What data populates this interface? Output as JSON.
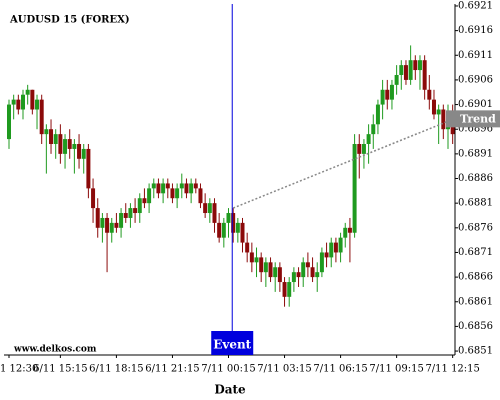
{
  "chart_data": {
    "type": "candlestick",
    "title": "AUDUSD 15 (FOREX)",
    "watermark": "www.delkos.com",
    "x_label": "Date",
    "up_color": "#1f9a1f",
    "down_color": "#8b0a0a",
    "ylim": [
      0.68502,
      0.69214
    ],
    "yticks": [
      0.6851,
      0.6856,
      0.6861,
      0.6866,
      0.6871,
      0.6876,
      0.6881,
      0.6886,
      0.6891,
      0.6896,
      0.6901,
      0.6906,
      0.6911,
      0.6916,
      0.6921
    ],
    "xlim": [
      -1.07,
      95.5
    ],
    "xticks": [
      {
        "value": 0,
        "label": "1 12:30"
      },
      {
        "value": 11,
        "label": "6/11 15:15"
      },
      {
        "value": 23,
        "label": "6/11 18:15"
      },
      {
        "value": 35,
        "label": "6/11 21:15"
      },
      {
        "value": 47,
        "label": "7/11 00:15"
      },
      {
        "value": 59,
        "label": "7/11 03:15"
      },
      {
        "value": 71,
        "label": "7/11 06:15"
      },
      {
        "value": 83,
        "label": "7/11 09:15"
      },
      {
        "value": 95,
        "label": "7/11 12:15"
      }
    ],
    "event": {
      "label": "Event",
      "x": 47.8,
      "color": "#0000dd"
    },
    "trend": {
      "label": "Trend",
      "x": [
        48,
        95
      ],
      "y": [
        0.688,
        0.6898
      ],
      "color": "#888888"
    },
    "open": [
      0.6894,
      0.6901,
      0.6902,
      0.69,
      0.6903,
      0.6904,
      0.69,
      0.6902,
      0.6895,
      0.6896,
      0.6893,
      0.6895,
      0.6891,
      0.6894,
      0.6892,
      0.6893,
      0.689,
      0.6892,
      0.6884,
      0.688,
      0.6876,
      0.6878,
      0.6875,
      0.6877,
      0.6876,
      0.6879,
      0.6878,
      0.688,
      0.6879,
      0.6882,
      0.6881,
      0.6884,
      0.6885,
      0.6883,
      0.6885,
      0.6884,
      0.6882,
      0.6884,
      0.6885,
      0.6883,
      0.6885,
      0.6884,
      0.6881,
      0.6879,
      0.6881,
      0.6877,
      0.6874,
      0.6877,
      0.6879,
      0.6875,
      0.6877,
      0.6873,
      0.6871,
      0.6869,
      0.687,
      0.6867,
      0.6869,
      0.6866,
      0.6868,
      0.6865,
      0.6862,
      0.6865,
      0.6867,
      0.6866,
      0.6869,
      0.6868,
      0.6866,
      0.6867,
      0.6871,
      0.687,
      0.6873,
      0.6871,
      0.6874,
      0.6876,
      0.6875,
      0.6893,
      0.6891,
      0.6893,
      0.6895,
      0.6897,
      0.6901,
      0.6904,
      0.6902,
      0.6905,
      0.6907,
      0.6909,
      0.6906,
      0.691,
      0.6908,
      0.691,
      0.6904,
      0.6902,
      0.6899,
      0.69,
      0.6896,
      0.6899
    ],
    "high": [
      0.6902,
      0.6903,
      0.6903,
      0.6904,
      0.6905,
      0.6904,
      0.6903,
      0.6903,
      0.6897,
      0.6898,
      0.6896,
      0.6897,
      0.6895,
      0.6896,
      0.6894,
      0.6895,
      0.6893,
      0.6893,
      0.6886,
      0.6882,
      0.6879,
      0.6879,
      0.6878,
      0.6879,
      0.688,
      0.6881,
      0.6881,
      0.6882,
      0.6883,
      0.6884,
      0.6885,
      0.6886,
      0.6886,
      0.6886,
      0.6886,
      0.6885,
      0.6885,
      0.6887,
      0.6886,
      0.6886,
      0.6886,
      0.6885,
      0.6883,
      0.6882,
      0.6882,
      0.6879,
      0.6878,
      0.688,
      0.688,
      0.6878,
      0.6878,
      0.6875,
      0.6873,
      0.6872,
      0.6871,
      0.687,
      0.687,
      0.6869,
      0.6869,
      0.6866,
      0.6866,
      0.6868,
      0.6868,
      0.687,
      0.6871,
      0.687,
      0.6869,
      0.6872,
      0.6873,
      0.6874,
      0.6874,
      0.6875,
      0.6877,
      0.6878,
      0.6895,
      0.6895,
      0.6894,
      0.6897,
      0.6899,
      0.6902,
      0.6906,
      0.6906,
      0.6906,
      0.6909,
      0.691,
      0.691,
      0.6913,
      0.6911,
      0.6911,
      0.6911,
      0.6907,
      0.6904,
      0.6901,
      0.6901,
      0.6901,
      0.6901
    ],
    "low": [
      0.6892,
      0.6898,
      0.6899,
      0.6898,
      0.6901,
      0.6899,
      0.6896,
      0.6893,
      0.6887,
      0.6891,
      0.689,
      0.6889,
      0.6888,
      0.689,
      0.6887,
      0.6888,
      0.6887,
      0.6882,
      0.6877,
      0.6874,
      0.6873,
      0.6867,
      0.6873,
      0.6875,
      0.6874,
      0.6877,
      0.6876,
      0.6877,
      0.6877,
      0.688,
      0.6879,
      0.6882,
      0.6882,
      0.6881,
      0.6882,
      0.6881,
      0.688,
      0.6882,
      0.6882,
      0.6881,
      0.6883,
      0.688,
      0.6878,
      0.6877,
      0.6875,
      0.6873,
      0.6872,
      0.6874,
      0.6873,
      0.6873,
      0.6871,
      0.6869,
      0.6867,
      0.6866,
      0.6865,
      0.6864,
      0.6865,
      0.6863,
      0.6863,
      0.686,
      0.686,
      0.6863,
      0.6864,
      0.6864,
      0.6866,
      0.6865,
      0.6863,
      0.6866,
      0.6868,
      0.6868,
      0.6869,
      0.6869,
      0.6872,
      0.6869,
      0.6874,
      0.6886,
      0.6888,
      0.6889,
      0.6892,
      0.6895,
      0.6898,
      0.69,
      0.69,
      0.6903,
      0.6904,
      0.6905,
      0.6905,
      0.6906,
      0.6904,
      0.6902,
      0.69,
      0.6898,
      0.6893,
      0.6894,
      0.6892,
      0.6893
    ],
    "close": [
      0.6901,
      0.6902,
      0.69,
      0.6903,
      0.6904,
      0.69,
      0.6902,
      0.6895,
      0.6896,
      0.6893,
      0.6895,
      0.6891,
      0.6894,
      0.6892,
      0.6893,
      0.689,
      0.6892,
      0.6884,
      0.688,
      0.6876,
      0.6878,
      0.6875,
      0.6877,
      0.6876,
      0.6879,
      0.6878,
      0.688,
      0.6879,
      0.6882,
      0.6881,
      0.6884,
      0.6885,
      0.6883,
      0.6885,
      0.6884,
      0.6882,
      0.6884,
      0.6885,
      0.6883,
      0.6885,
      0.6884,
      0.6881,
      0.6879,
      0.6881,
      0.6877,
      0.6874,
      0.6877,
      0.6879,
      0.6875,
      0.6877,
      0.6873,
      0.6871,
      0.6869,
      0.687,
      0.6867,
      0.6869,
      0.6866,
      0.6868,
      0.6865,
      0.6862,
      0.6865,
      0.6867,
      0.6866,
      0.6869,
      0.6868,
      0.6866,
      0.6867,
      0.6871,
      0.687,
      0.6873,
      0.6871,
      0.6874,
      0.6876,
      0.6875,
      0.6893,
      0.6891,
      0.6893,
      0.6895,
      0.6897,
      0.6901,
      0.6904,
      0.6902,
      0.6905,
      0.6907,
      0.6909,
      0.6906,
      0.691,
      0.6908,
      0.691,
      0.6904,
      0.6902,
      0.6899,
      0.69,
      0.6896,
      0.6899,
      0.6895
    ]
  }
}
